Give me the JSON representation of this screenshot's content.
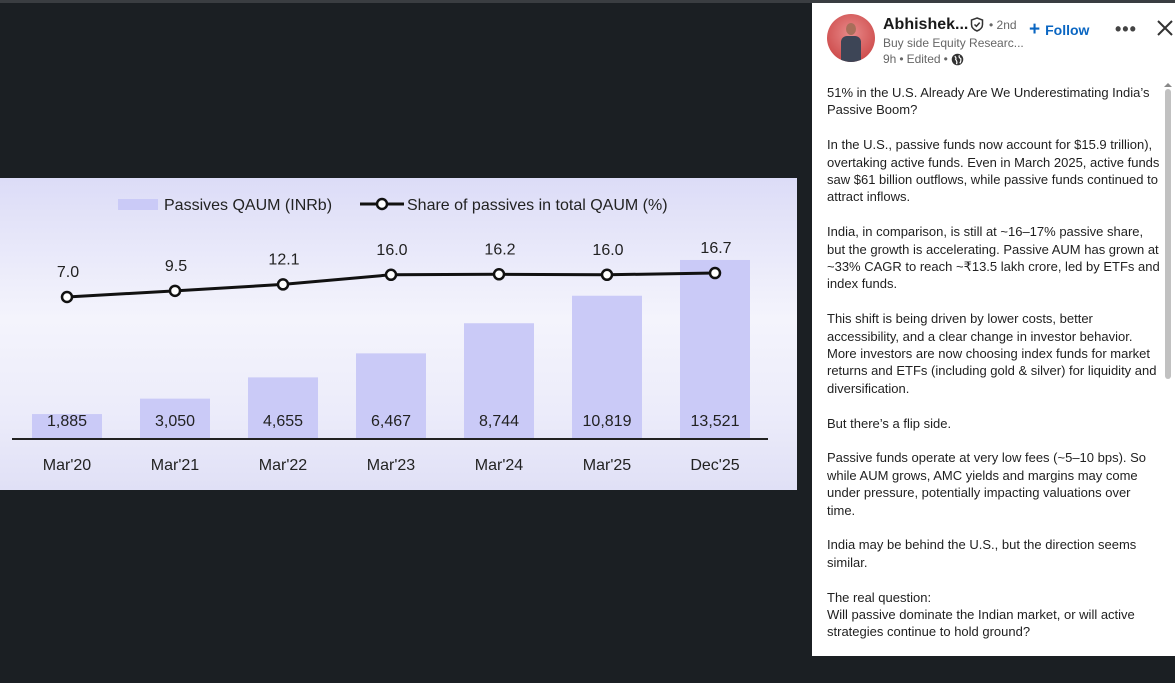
{
  "author": {
    "name": "Abhishek...",
    "degree": "• 2nd",
    "headline": "Buy side Equity Researc...",
    "time": "9h",
    "edited": "Edited",
    "visibility_icon": "globe-icon",
    "verified_icon": "shield-check-icon"
  },
  "actions": {
    "follow": "Follow",
    "more_icon": "ellipsis-icon",
    "close_icon": "close-icon"
  },
  "post": {
    "paragraphs": [
      "51% in the U.S. Already Are We Underestimating India’s Passive Boom?",
      "In the U.S., passive funds now account for $15.9 trillion), overtaking active funds. Even in March 2025, active funds saw $61 billion outflows, while passive funds continued to attract inflows.",
      "India, in comparison, is still at ~16–17% passive share, but the growth is accelerating. Passive AUM has grown at ~33% CAGR to reach ~₹13.5 lakh crore, led by ETFs and index funds.",
      "This shift is being driven by lower costs, better accessibility, and a clear change in investor behavior. More investors are now choosing index funds for market returns and ETFs (including gold & silver) for liquidity and diversification.",
      "But there’s a flip side.",
      "Passive funds operate at very low fees (~5–10 bps). So while AUM grows, AMC yields and margins may come under pressure, potentially impacting valuations over time.",
      "India may be behind the U.S., but the direction seems similar.",
      "The real question:\nWill passive dominate the Indian market, or will active strategies continue to hold ground?"
    ]
  },
  "chart_data": {
    "type": "bar+line",
    "categories": [
      "Mar'20",
      "Mar'21",
      "Mar'22",
      "Mar'23",
      "Mar'24",
      "Mar'25",
      "Dec'25"
    ],
    "series": [
      {
        "name": "Passives QAUM (INRb)",
        "type": "bar",
        "values": [
          1885,
          3050,
          4655,
          6467,
          8744,
          10819,
          13521
        ],
        "labels": [
          "1,885",
          "3,050",
          "4,655",
          "6,467",
          "8,744",
          "10,819",
          "13,521"
        ],
        "color": "#cacaf7"
      },
      {
        "name": "Share of passives in total QAUM (%)",
        "type": "line",
        "values": [
          7.0,
          9.5,
          12.1,
          16.0,
          16.2,
          16.0,
          16.7
        ],
        "labels": [
          "7.0",
          "9.5",
          "12.1",
          "16.0",
          "16.2",
          "16.0",
          "16.7"
        ],
        "color": "#111111"
      }
    ],
    "legend": "top-center",
    "grid": false
  }
}
